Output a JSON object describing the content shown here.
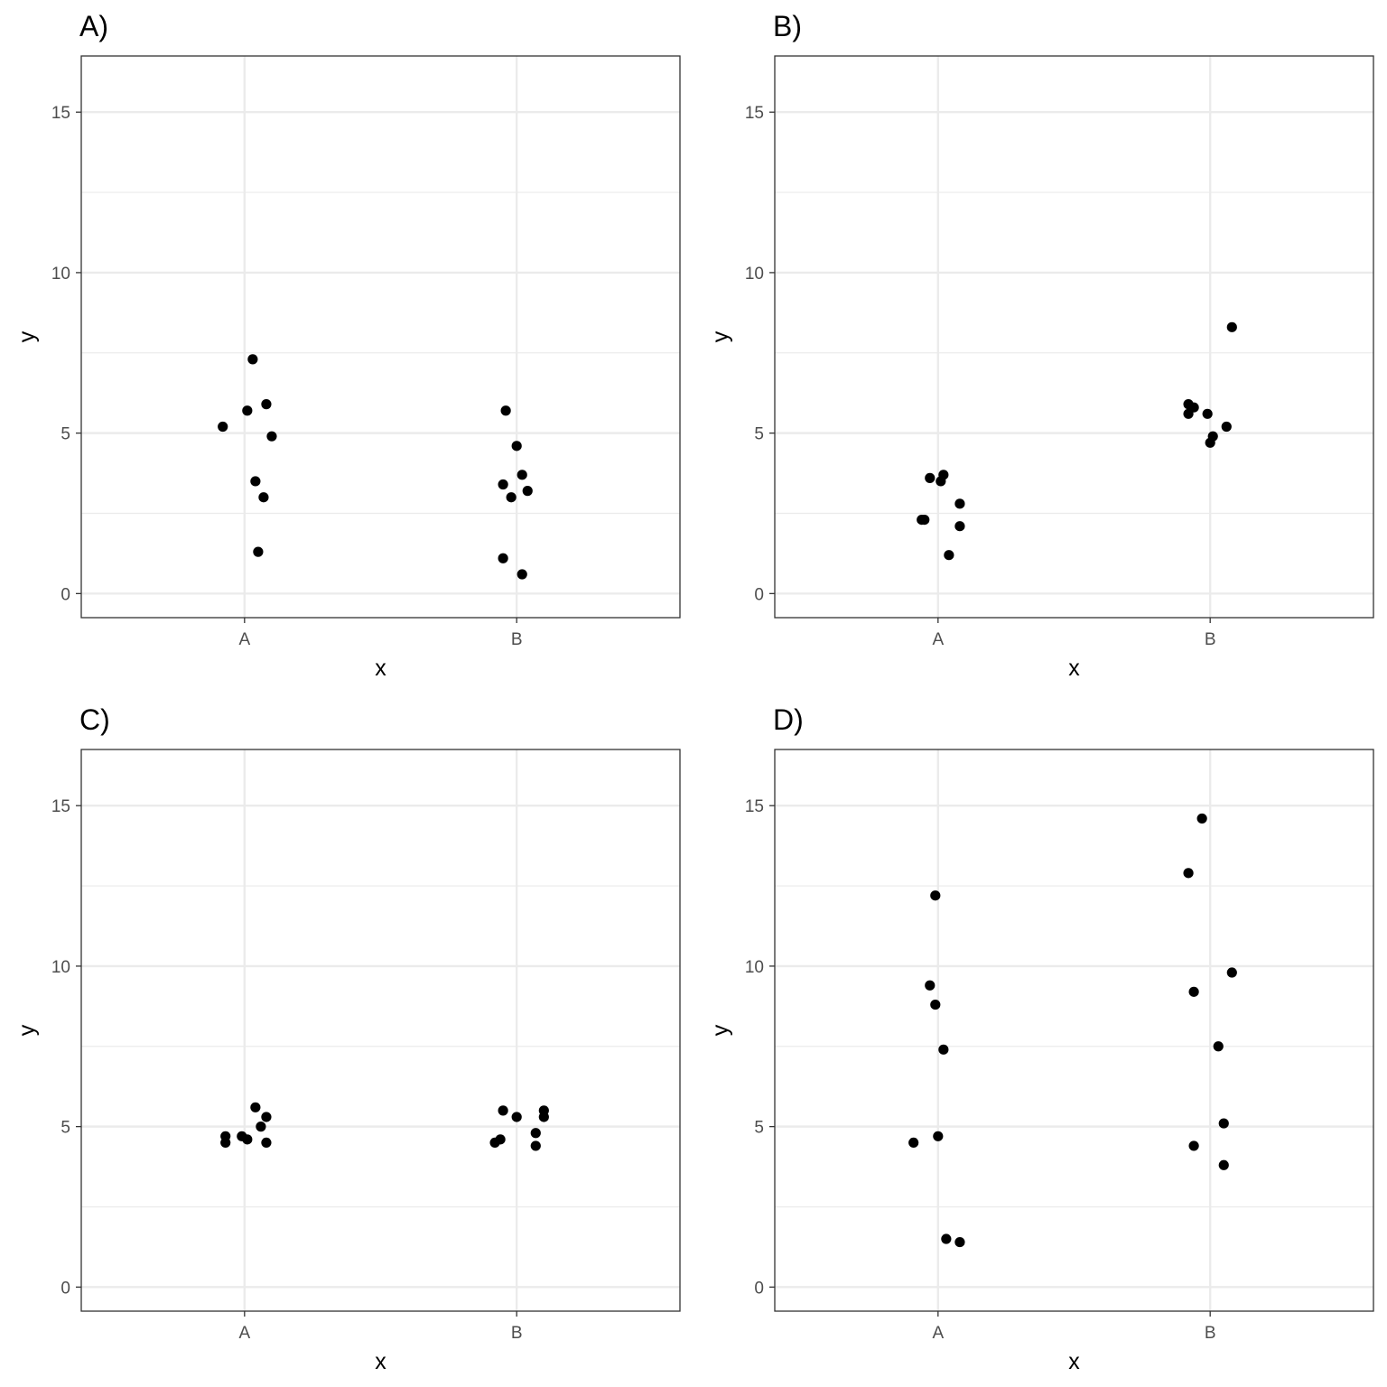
{
  "chart_data": [
    {
      "type": "scatter",
      "title": "A)",
      "xlabel": "x",
      "ylabel": "y",
      "categories": [
        "A",
        "B"
      ],
      "ylim": [
        -0.75,
        16.75
      ],
      "yticks": [
        0,
        5,
        10,
        15
      ],
      "grid": true,
      "points": [
        {
          "x": "A",
          "jitter": -0.08,
          "y": 5.2
        },
        {
          "x": "A",
          "jitter": 0.01,
          "y": 5.7
        },
        {
          "x": "A",
          "jitter": 0.03,
          "y": 7.3
        },
        {
          "x": "A",
          "jitter": 0.08,
          "y": 5.9
        },
        {
          "x": "A",
          "jitter": 0.1,
          "y": 4.9
        },
        {
          "x": "A",
          "jitter": 0.04,
          "y": 3.5
        },
        {
          "x": "A",
          "jitter": 0.07,
          "y": 3.0
        },
        {
          "x": "A",
          "jitter": 0.05,
          "y": 1.3
        },
        {
          "x": "B",
          "jitter": -0.04,
          "y": 5.7
        },
        {
          "x": "B",
          "jitter": 0.0,
          "y": 4.6
        },
        {
          "x": "B",
          "jitter": -0.05,
          "y": 3.4
        },
        {
          "x": "B",
          "jitter": 0.02,
          "y": 3.7
        },
        {
          "x": "B",
          "jitter": -0.02,
          "y": 3.0
        },
        {
          "x": "B",
          "jitter": 0.04,
          "y": 3.2
        },
        {
          "x": "B",
          "jitter": -0.05,
          "y": 1.1
        },
        {
          "x": "B",
          "jitter": 0.02,
          "y": 0.6
        }
      ]
    },
    {
      "type": "scatter",
      "title": "B)",
      "xlabel": "x",
      "ylabel": "y",
      "categories": [
        "A",
        "B"
      ],
      "ylim": [
        -0.75,
        16.75
      ],
      "yticks": [
        0,
        5,
        10,
        15
      ],
      "grid": true,
      "points": [
        {
          "x": "A",
          "jitter": -0.03,
          "y": 3.6
        },
        {
          "x": "A",
          "jitter": 0.01,
          "y": 3.5
        },
        {
          "x": "A",
          "jitter": 0.02,
          "y": 3.7
        },
        {
          "x": "A",
          "jitter": 0.08,
          "y": 2.8
        },
        {
          "x": "A",
          "jitter": -0.06,
          "y": 2.3
        },
        {
          "x": "A",
          "jitter": -0.05,
          "y": 2.3
        },
        {
          "x": "A",
          "jitter": 0.08,
          "y": 2.1
        },
        {
          "x": "A",
          "jitter": 0.04,
          "y": 1.2
        },
        {
          "x": "B",
          "jitter": 0.08,
          "y": 8.3
        },
        {
          "x": "B",
          "jitter": -0.08,
          "y": 5.9
        },
        {
          "x": "B",
          "jitter": -0.06,
          "y": 5.8
        },
        {
          "x": "B",
          "jitter": -0.08,
          "y": 5.6
        },
        {
          "x": "B",
          "jitter": -0.01,
          "y": 5.6
        },
        {
          "x": "B",
          "jitter": 0.06,
          "y": 5.2
        },
        {
          "x": "B",
          "jitter": 0.01,
          "y": 4.9
        },
        {
          "x": "B",
          "jitter": 0.0,
          "y": 4.7
        }
      ]
    },
    {
      "type": "scatter",
      "title": "C)",
      "xlabel": "x",
      "ylabel": "y",
      "categories": [
        "A",
        "B"
      ],
      "ylim": [
        -0.75,
        16.75
      ],
      "yticks": [
        0,
        5,
        10,
        15
      ],
      "grid": true,
      "points": [
        {
          "x": "A",
          "jitter": 0.04,
          "y": 5.6
        },
        {
          "x": "A",
          "jitter": 0.08,
          "y": 5.3
        },
        {
          "x": "A",
          "jitter": 0.06,
          "y": 5.0
        },
        {
          "x": "A",
          "jitter": -0.07,
          "y": 4.7
        },
        {
          "x": "A",
          "jitter": -0.01,
          "y": 4.7
        },
        {
          "x": "A",
          "jitter": 0.01,
          "y": 4.6
        },
        {
          "x": "A",
          "jitter": -0.07,
          "y": 4.5
        },
        {
          "x": "A",
          "jitter": 0.08,
          "y": 4.5
        },
        {
          "x": "B",
          "jitter": -0.05,
          "y": 5.5
        },
        {
          "x": "B",
          "jitter": 0.1,
          "y": 5.5
        },
        {
          "x": "B",
          "jitter": 0.1,
          "y": 5.3
        },
        {
          "x": "B",
          "jitter": 0.0,
          "y": 5.3
        },
        {
          "x": "B",
          "jitter": 0.07,
          "y": 4.8
        },
        {
          "x": "B",
          "jitter": -0.06,
          "y": 4.6
        },
        {
          "x": "B",
          "jitter": -0.08,
          "y": 4.5
        },
        {
          "x": "B",
          "jitter": 0.07,
          "y": 4.4
        }
      ]
    },
    {
      "type": "scatter",
      "title": "D)",
      "xlabel": "x",
      "ylabel": "y",
      "categories": [
        "A",
        "B"
      ],
      "ylim": [
        -0.75,
        16.75
      ],
      "yticks": [
        0,
        5,
        10,
        15
      ],
      "grid": true,
      "points": [
        {
          "x": "A",
          "jitter": -0.01,
          "y": 12.2
        },
        {
          "x": "A",
          "jitter": -0.03,
          "y": 9.4
        },
        {
          "x": "A",
          "jitter": -0.01,
          "y": 8.8
        },
        {
          "x": "A",
          "jitter": 0.02,
          "y": 7.4
        },
        {
          "x": "A",
          "jitter": 0.0,
          "y": 4.7
        },
        {
          "x": "A",
          "jitter": -0.09,
          "y": 4.5
        },
        {
          "x": "A",
          "jitter": 0.03,
          "y": 1.5
        },
        {
          "x": "A",
          "jitter": 0.08,
          "y": 1.4
        },
        {
          "x": "B",
          "jitter": -0.03,
          "y": 14.6
        },
        {
          "x": "B",
          "jitter": -0.08,
          "y": 12.9
        },
        {
          "x": "B",
          "jitter": 0.08,
          "y": 9.8
        },
        {
          "x": "B",
          "jitter": -0.06,
          "y": 9.2
        },
        {
          "x": "B",
          "jitter": 0.03,
          "y": 7.5
        },
        {
          "x": "B",
          "jitter": 0.05,
          "y": 5.1
        },
        {
          "x": "B",
          "jitter": -0.06,
          "y": 4.4
        },
        {
          "x": "B",
          "jitter": 0.05,
          "y": 3.8
        }
      ]
    }
  ],
  "colors": {
    "point": "#000000",
    "grid": "#ebebeb",
    "frame": "#333333",
    "tick_text": "#4d4d4d",
    "background": "#ffffff"
  }
}
